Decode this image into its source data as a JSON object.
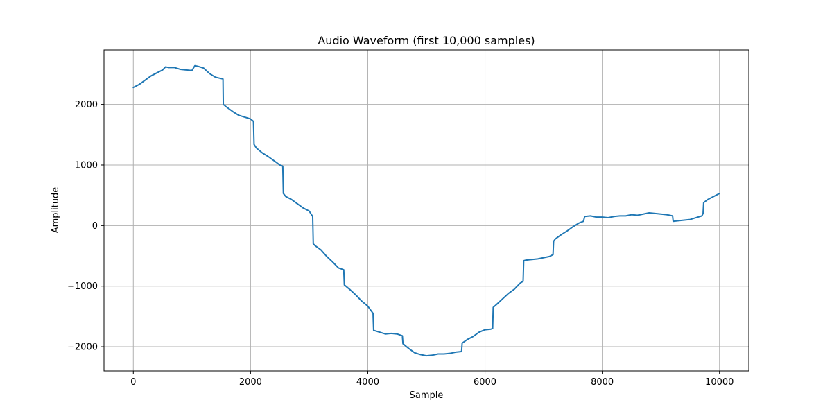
{
  "chart_data": {
    "type": "line",
    "title": "Audio Waveform (first 10,000 samples)",
    "xlabel": "Sample",
    "ylabel": "Amplitude",
    "xlim": [
      -500,
      10500
    ],
    "ylim": [
      -2400,
      2900
    ],
    "xticks": [
      0,
      2000,
      4000,
      6000,
      8000,
      10000
    ],
    "xtick_labels": [
      "0",
      "2000",
      "4000",
      "6000",
      "8000",
      "10000"
    ],
    "yticks": [
      -2000,
      -1000,
      0,
      1000,
      2000
    ],
    "ytick_labels": [
      "−2000",
      "−1000",
      "0",
      "1000",
      "2000"
    ],
    "grid": true,
    "color": "#1f77b4",
    "series": [
      {
        "x": [
          0,
          100,
          200,
          300,
          400,
          500,
          550,
          600,
          700,
          800,
          900,
          1000,
          1050,
          1100,
          1200,
          1300,
          1400,
          1530,
          1535,
          1600,
          1700,
          1800,
          1900,
          2000,
          2050,
          2060,
          2100,
          2200,
          2300,
          2400,
          2500,
          2550,
          2560,
          2600,
          2700,
          2800,
          2900,
          3000,
          3060,
          3070,
          3100,
          3200,
          3300,
          3400,
          3500,
          3590,
          3600,
          3700,
          3800,
          3900,
          4000,
          4090,
          4100,
          4200,
          4300,
          4400,
          4500,
          4590,
          4600,
          4700,
          4800,
          4900,
          5000,
          5100,
          5200,
          5300,
          5400,
          5500,
          5600,
          5610,
          5700,
          5800,
          5900,
          6000,
          6100,
          6130,
          6140,
          6200,
          6300,
          6400,
          6500,
          6600,
          6650,
          6660,
          6700,
          6800,
          6900,
          7000,
          7100,
          7160,
          7170,
          7200,
          7300,
          7400,
          7500,
          7600,
          7680,
          7700,
          7800,
          7900,
          8000,
          8100,
          8200,
          8300,
          8400,
          8500,
          8600,
          8700,
          8800,
          8900,
          9000,
          9100,
          9200,
          9210,
          9300,
          9400,
          9500,
          9600,
          9700,
          9720,
          9730,
          9800,
          9900,
          10000
        ],
        "y": [
          2280,
          2330,
          2400,
          2470,
          2520,
          2570,
          2620,
          2610,
          2610,
          2580,
          2570,
          2560,
          2640,
          2630,
          2600,
          2510,
          2450,
          2420,
          2000,
          1950,
          1880,
          1820,
          1790,
          1760,
          1720,
          1340,
          1280,
          1200,
          1140,
          1070,
          1000,
          980,
          530,
          480,
          430,
          360,
          290,
          240,
          150,
          -300,
          -330,
          -400,
          -510,
          -600,
          -700,
          -730,
          -980,
          -1060,
          -1150,
          -1250,
          -1330,
          -1450,
          -1730,
          -1760,
          -1790,
          -1780,
          -1790,
          -1820,
          -1950,
          -2030,
          -2100,
          -2130,
          -2150,
          -2140,
          -2120,
          -2120,
          -2110,
          -2090,
          -2080,
          -1940,
          -1880,
          -1830,
          -1760,
          -1720,
          -1710,
          -1700,
          -1350,
          -1300,
          -1210,
          -1120,
          -1050,
          -950,
          -920,
          -580,
          -570,
          -560,
          -550,
          -530,
          -510,
          -480,
          -260,
          -220,
          -150,
          -90,
          -20,
          40,
          70,
          150,
          160,
          140,
          140,
          130,
          150,
          160,
          160,
          180,
          170,
          190,
          210,
          200,
          190,
          180,
          160,
          70,
          80,
          90,
          100,
          130,
          160,
          200,
          380,
          430,
          480,
          530
        ]
      }
    ]
  }
}
